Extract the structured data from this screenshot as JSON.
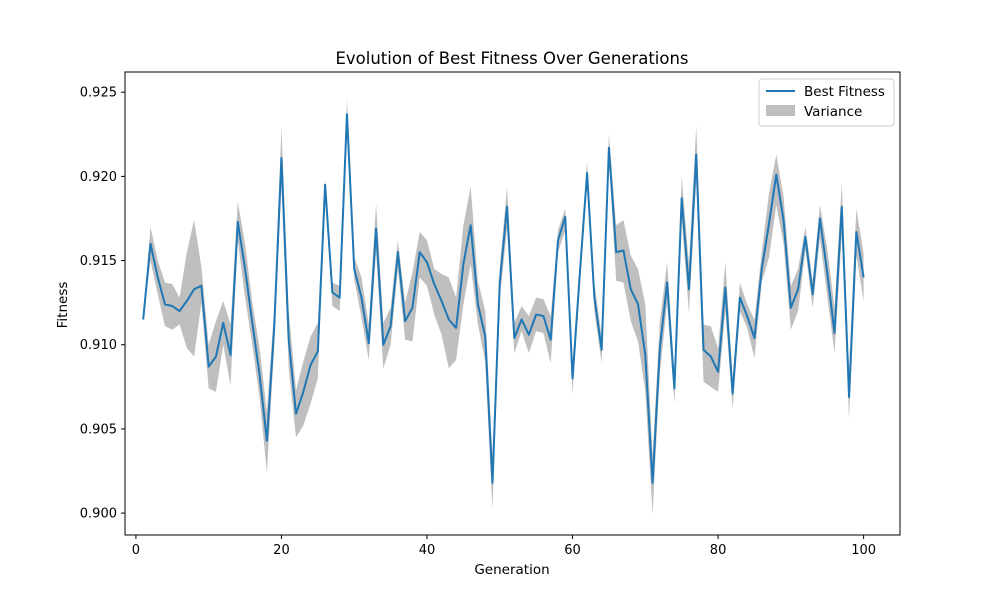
{
  "chart_data": {
    "type": "line",
    "title": "Evolution of Best Fitness Over Generations",
    "xlabel": "Generation",
    "ylabel": "Fitness",
    "xlim": [
      -1.5,
      105
    ],
    "ylim": [
      0.8987,
      0.9262
    ],
    "xticks": [
      0,
      20,
      40,
      60,
      80,
      100
    ],
    "yticks": [
      0.9,
      0.905,
      0.91,
      0.915,
      0.92,
      0.925
    ],
    "ytick_labels": [
      "0.900",
      "0.905",
      "0.910",
      "0.915",
      "0.920",
      "0.925"
    ],
    "grid": false,
    "legend_position": "upper right",
    "x": [
      1,
      2,
      3,
      4,
      5,
      6,
      7,
      8,
      9,
      10,
      11,
      12,
      13,
      14,
      15,
      16,
      17,
      18,
      19,
      20,
      21,
      22,
      23,
      24,
      25,
      26,
      27,
      28,
      29,
      30,
      31,
      32,
      33,
      34,
      35,
      36,
      37,
      38,
      39,
      40,
      41,
      42,
      43,
      44,
      45,
      46,
      47,
      48,
      49,
      50,
      51,
      52,
      53,
      54,
      55,
      56,
      57,
      58,
      59,
      60,
      61,
      62,
      63,
      64,
      65,
      66,
      67,
      68,
      69,
      70,
      71,
      72,
      73,
      74,
      75,
      76,
      77,
      78,
      79,
      80,
      81,
      82,
      83,
      84,
      85,
      86,
      87,
      88,
      89,
      90,
      91,
      92,
      93,
      94,
      95,
      96,
      97,
      98,
      99,
      100
    ],
    "series": [
      {
        "name": "Best Fitness",
        "color": "#1f77b4",
        "values": [
          0.9115,
          0.916,
          0.914,
          0.9124,
          0.9123,
          0.912,
          0.9126,
          0.9133,
          0.9135,
          0.9087,
          0.9093,
          0.9113,
          0.9094,
          0.9173,
          0.9145,
          0.9113,
          0.9082,
          0.9043,
          0.911,
          0.9211,
          0.9103,
          0.9059,
          0.9072,
          0.9088,
          0.9096,
          0.9195,
          0.9131,
          0.9128,
          0.9237,
          0.9145,
          0.9128,
          0.9101,
          0.9169,
          0.91,
          0.9111,
          0.9155,
          0.9114,
          0.9122,
          0.9155,
          0.9149,
          0.9136,
          0.9126,
          0.9115,
          0.911,
          0.9148,
          0.9171,
          0.9124,
          0.9105,
          0.9018,
          0.9137,
          0.9182,
          0.9104,
          0.9115,
          0.9106,
          0.9118,
          0.9117,
          0.9103,
          0.9162,
          0.9176,
          0.908,
          0.9142,
          0.9202,
          0.9128,
          0.9097,
          0.9217,
          0.9155,
          0.9156,
          0.9133,
          0.9124,
          0.9094,
          0.9018,
          0.9098,
          0.9137,
          0.9074,
          0.9187,
          0.9133,
          0.9213,
          0.9097,
          0.9093,
          0.9084,
          0.9134,
          0.9071,
          0.9128,
          0.9117,
          0.9104,
          0.9145,
          0.9172,
          0.9201,
          0.9174,
          0.9122,
          0.9133,
          0.9164,
          0.913,
          0.9175,
          0.9143,
          0.9107,
          0.9182,
          0.9069,
          0.9167,
          0.914
        ]
      },
      {
        "name": "Variance",
        "color": "#808080",
        "lower": [
          0.9115,
          0.915,
          0.913,
          0.9111,
          0.9109,
          0.9112,
          0.9098,
          0.9093,
          0.9125,
          0.9074,
          0.9072,
          0.91,
          0.9076,
          0.9162,
          0.9128,
          0.91,
          0.9068,
          0.9024,
          0.9098,
          0.9195,
          0.9086,
          0.9045,
          0.9052,
          0.9065,
          0.908,
          0.919,
          0.9123,
          0.912,
          0.9227,
          0.9139,
          0.9116,
          0.9091,
          0.9155,
          0.9086,
          0.91,
          0.9145,
          0.9103,
          0.9102,
          0.914,
          0.9135,
          0.9118,
          0.9106,
          0.9086,
          0.9091,
          0.9124,
          0.9148,
          0.9112,
          0.909,
          0.9002,
          0.9127,
          0.9169,
          0.9095,
          0.9108,
          0.9095,
          0.9108,
          0.9107,
          0.9089,
          0.9155,
          0.9168,
          0.9071,
          0.9135,
          0.9195,
          0.912,
          0.9089,
          0.9209,
          0.9138,
          0.9137,
          0.9114,
          0.9102,
          0.9072,
          0.8999,
          0.9083,
          0.9125,
          0.9065,
          0.9174,
          0.9119,
          0.9197,
          0.9078,
          0.9075,
          0.9072,
          0.912,
          0.9062,
          0.912,
          0.911,
          0.9092,
          0.9137,
          0.9152,
          0.9183,
          0.916,
          0.9109,
          0.912,
          0.9156,
          0.9122,
          0.9163,
          0.9129,
          0.9095,
          0.9165,
          0.9056,
          0.9153,
          0.9126
        ],
        "upper": [
          0.9115,
          0.917,
          0.915,
          0.9137,
          0.9136,
          0.9128,
          0.9155,
          0.9174,
          0.9146,
          0.91,
          0.9114,
          0.9126,
          0.9112,
          0.9185,
          0.916,
          0.9125,
          0.9098,
          0.906,
          0.9122,
          0.9229,
          0.912,
          0.9073,
          0.909,
          0.9105,
          0.9113,
          0.9198,
          0.9137,
          0.9135,
          0.9246,
          0.9152,
          0.914,
          0.9112,
          0.9184,
          0.9113,
          0.9122,
          0.9162,
          0.9125,
          0.9143,
          0.9167,
          0.9162,
          0.9145,
          0.9142,
          0.914,
          0.9128,
          0.9171,
          0.9194,
          0.9138,
          0.912,
          0.9034,
          0.9146,
          0.9194,
          0.9113,
          0.9123,
          0.9117,
          0.9128,
          0.9127,
          0.9117,
          0.9168,
          0.9181,
          0.9088,
          0.915,
          0.9209,
          0.9137,
          0.9105,
          0.9225,
          0.9171,
          0.9174,
          0.9153,
          0.9145,
          0.9124,
          0.9034,
          0.9114,
          0.9149,
          0.9083,
          0.92,
          0.9148,
          0.923,
          0.9112,
          0.9111,
          0.9098,
          0.9149,
          0.908,
          0.9137,
          0.9124,
          0.9115,
          0.9155,
          0.919,
          0.9213,
          0.9188,
          0.9135,
          0.9145,
          0.917,
          0.9138,
          0.9183,
          0.9157,
          0.9122,
          0.9196,
          0.9086,
          0.9181,
          0.9154
        ]
      }
    ]
  }
}
